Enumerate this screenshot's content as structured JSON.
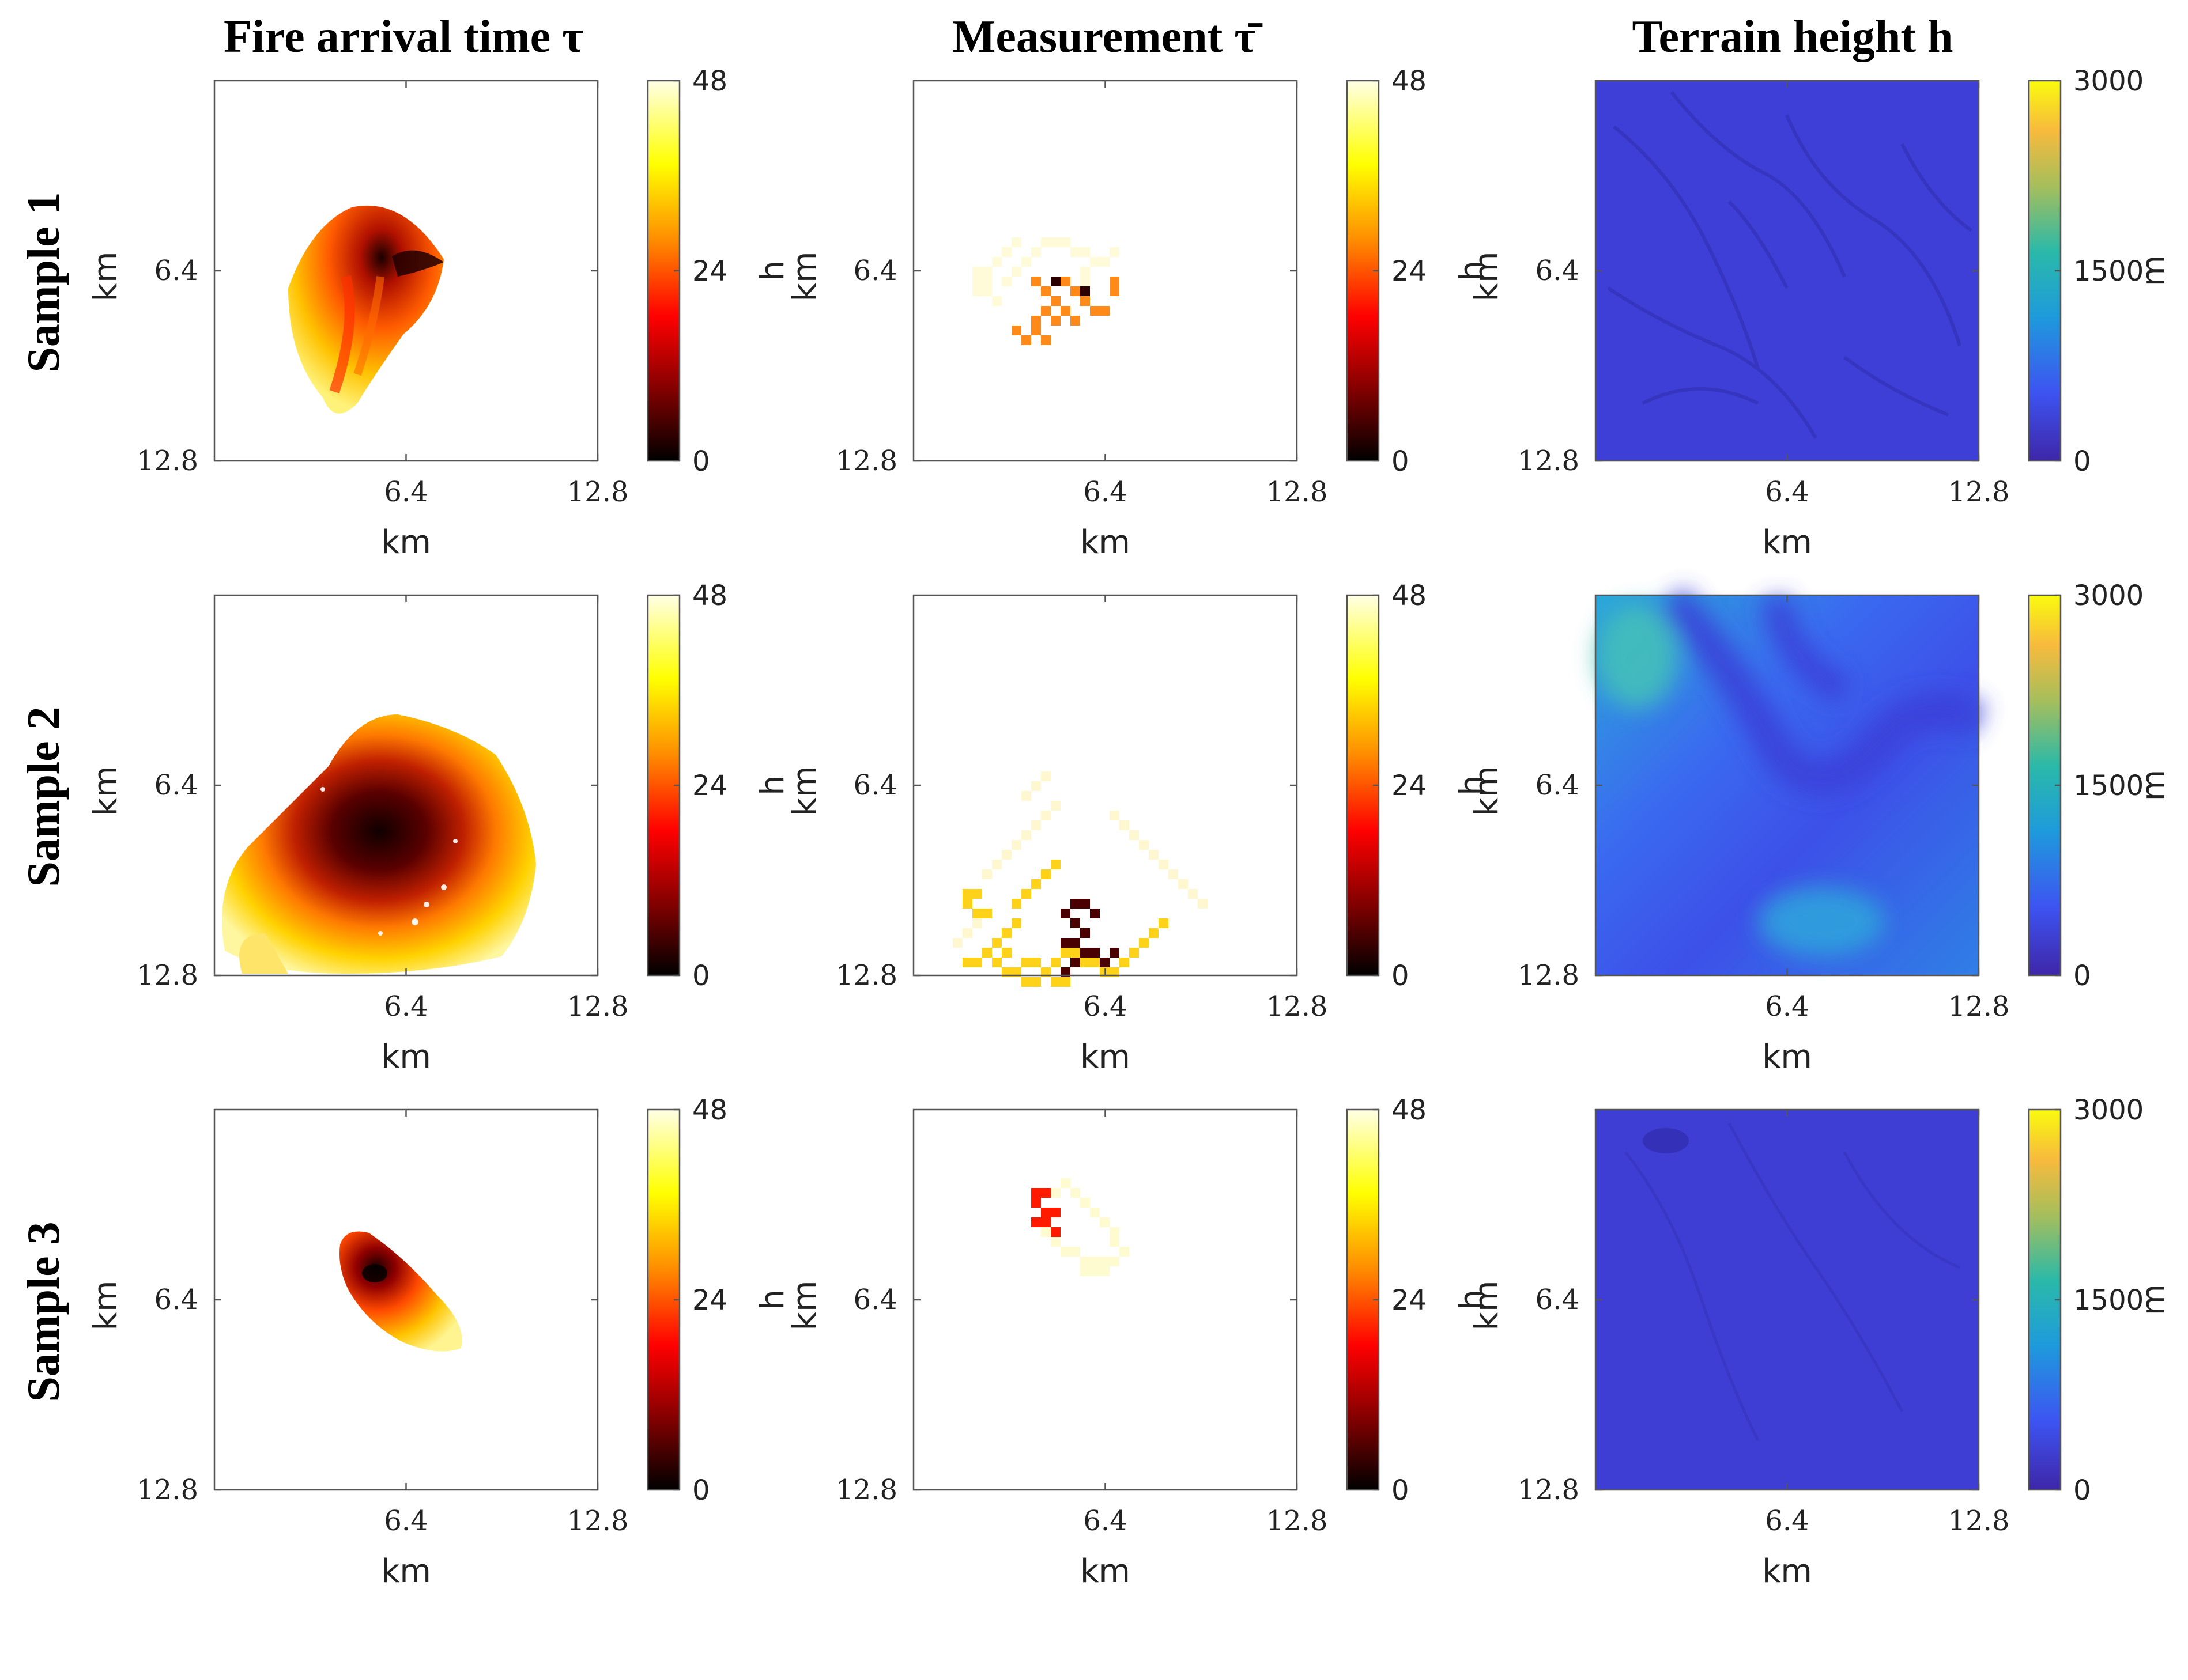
{
  "figure": {
    "column_titles": [
      "Fire arrival time τ",
      "Measurement τ̄",
      "Terrain height h"
    ],
    "row_titles": [
      "Sample 1",
      "Sample 2",
      "Sample 3"
    ]
  },
  "colors": {
    "hot_colormap": [
      "#000000",
      "#8b0000",
      "#ff0000",
      "#ff8c00",
      "#ffff00",
      "#ffffe0"
    ],
    "parula_colormap": [
      "#3e26a8",
      "#3d54f2",
      "#1e9bdc",
      "#2ab9a9",
      "#a4be5c",
      "#f8ba3c",
      "#f9fb0e"
    ]
  },
  "chart_data": [
    {
      "type": "heatmap",
      "panel": "fire-arrival-sample-1",
      "title": "Fire arrival time τ",
      "xlabel": "km",
      "ylabel": "km",
      "xlim": [
        0,
        12.8
      ],
      "ylim": [
        12.8,
        0
      ],
      "xticks": [
        "6.4",
        "12.8"
      ],
      "yticks": [
        "6.4",
        "12.8"
      ],
      "colorbar": {
        "label": "h",
        "range": [
          0,
          48
        ],
        "ticks": [
          "0",
          "24",
          "48"
        ],
        "colormap": "hot"
      }
    },
    {
      "type": "heatmap",
      "panel": "measurement-sample-1",
      "title": "Measurement τ̄",
      "xlabel": "km",
      "ylabel": "km",
      "xlim": [
        0,
        12.8
      ],
      "ylim": [
        12.8,
        0
      ],
      "xticks": [
        "6.4",
        "12.8"
      ],
      "yticks": [
        "6.4",
        "12.8"
      ],
      "colorbar": {
        "label": "h",
        "range": [
          0,
          48
        ],
        "ticks": [
          "0",
          "24",
          "48"
        ],
        "colormap": "hot"
      }
    },
    {
      "type": "heatmap",
      "panel": "terrain-sample-1",
      "title": "Terrain height h",
      "xlabel": "km",
      "ylabel": "km",
      "xlim": [
        0,
        12.8
      ],
      "ylim": [
        12.8,
        0
      ],
      "xticks": [
        "6.4",
        "12.8"
      ],
      "yticks": [
        "6.4",
        "12.8"
      ],
      "colorbar": {
        "label": "m",
        "range": [
          0,
          3000
        ],
        "ticks": [
          "0",
          "1500",
          "3000"
        ],
        "colormap": "parula"
      }
    },
    {
      "type": "heatmap",
      "panel": "fire-arrival-sample-2",
      "xlabel": "km",
      "ylabel": "km",
      "xlim": [
        0,
        12.8
      ],
      "ylim": [
        12.8,
        0
      ],
      "xticks": [
        "6.4",
        "12.8"
      ],
      "yticks": [
        "6.4",
        "12.8"
      ],
      "colorbar": {
        "label": "h",
        "range": [
          0,
          48
        ],
        "ticks": [
          "0",
          "24",
          "48"
        ],
        "colormap": "hot"
      }
    },
    {
      "type": "heatmap",
      "panel": "measurement-sample-2",
      "xlabel": "km",
      "ylabel": "km",
      "xlim": [
        0,
        12.8
      ],
      "ylim": [
        12.8,
        0
      ],
      "xticks": [
        "6.4",
        "12.8"
      ],
      "yticks": [
        "6.4",
        "12.8"
      ],
      "colorbar": {
        "label": "h",
        "range": [
          0,
          48
        ],
        "ticks": [
          "0",
          "24",
          "48"
        ],
        "colormap": "hot"
      }
    },
    {
      "type": "heatmap",
      "panel": "terrain-sample-2",
      "xlabel": "km",
      "ylabel": "km",
      "xlim": [
        0,
        12.8
      ],
      "ylim": [
        12.8,
        0
      ],
      "xticks": [
        "6.4",
        "12.8"
      ],
      "yticks": [
        "6.4",
        "12.8"
      ],
      "colorbar": {
        "label": "m",
        "range": [
          0,
          3000
        ],
        "ticks": [
          "0",
          "1500",
          "3000"
        ],
        "colormap": "parula"
      }
    },
    {
      "type": "heatmap",
      "panel": "fire-arrival-sample-3",
      "xlabel": "km",
      "ylabel": "km",
      "xlim": [
        0,
        12.8
      ],
      "ylim": [
        12.8,
        0
      ],
      "xticks": [
        "6.4",
        "12.8"
      ],
      "yticks": [
        "6.4",
        "12.8"
      ],
      "colorbar": {
        "label": "h",
        "range": [
          0,
          48
        ],
        "ticks": [
          "0",
          "24",
          "48"
        ],
        "colormap": "hot"
      }
    },
    {
      "type": "heatmap",
      "panel": "measurement-sample-3",
      "xlabel": "km",
      "ylabel": "km",
      "xlim": [
        0,
        12.8
      ],
      "ylim": [
        12.8,
        0
      ],
      "xticks": [
        "6.4",
        "12.8"
      ],
      "yticks": [
        "6.4",
        "12.8"
      ],
      "colorbar": {
        "label": "h",
        "range": [
          0,
          48
        ],
        "ticks": [
          "0",
          "24",
          "48"
        ],
        "colormap": "hot"
      }
    },
    {
      "type": "heatmap",
      "panel": "terrain-sample-3",
      "xlabel": "km",
      "ylabel": "km",
      "xlim": [
        0,
        12.8
      ],
      "ylim": [
        12.8,
        0
      ],
      "xticks": [
        "6.4",
        "12.8"
      ],
      "yticks": [
        "6.4",
        "12.8"
      ],
      "colorbar": {
        "label": "m",
        "range": [
          0,
          3000
        ],
        "ticks": [
          "0",
          "1500",
          "3000"
        ],
        "colormap": "parula"
      }
    }
  ]
}
